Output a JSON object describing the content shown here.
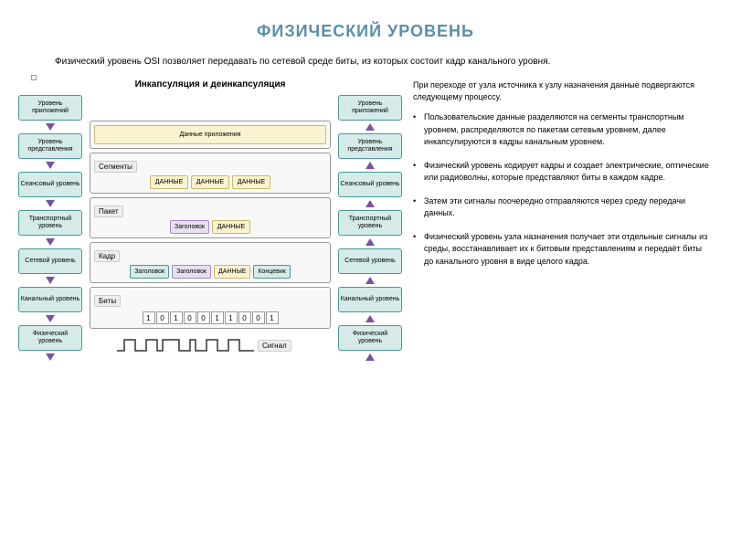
{
  "title": "ФИЗИЧЕСКИЙ УРОВЕНЬ",
  "title_color": "#5a8fa8",
  "intro": "Физический уровень OSI позволяет передавать по сетевой среде биты, из которых состоит кадр канального уровня.",
  "diagram": {
    "header": "Инкапсуляция и деинкапсуляция",
    "layers_left": [
      "Уровень приложений",
      "Уровень представления",
      "Сеансовый уровень",
      "Транспортный уровень",
      "Сетевой уровень",
      "Канальный уровень",
      "Физический уровень"
    ],
    "layers_right": [
      "Уровень приложений",
      "Уровень представления",
      "Сеансовый уровень",
      "Транспортный уровень",
      "Сетевой уровень",
      "Канальный уровень",
      "Физический уровень"
    ],
    "layer_bg": "#d4ebea",
    "layer_border": "#4a9896",
    "arrow_color": "#7b52a3",
    "app_data": {
      "label": "Данные приложения",
      "bg": "#faf3d0",
      "border": "#c9b96e"
    },
    "segments": {
      "label": "Сегменты",
      "blocks": [
        "ДАННЫЕ",
        "ДАННЫЕ",
        "ДАННЫЕ"
      ],
      "bg": "#faf3d0",
      "border": "#c9b96e"
    },
    "packet": {
      "label": "Пакет",
      "blocks": [
        {
          "t": "Заголовок",
          "bg": "#e8dff0",
          "border": "#a988c4"
        },
        {
          "t": "ДАННЫЕ",
          "bg": "#faf3d0",
          "border": "#c9b96e"
        }
      ]
    },
    "frame": {
      "label": "Кадр",
      "blocks": [
        {
          "t": "Заголовок",
          "bg": "#d4ebea",
          "border": "#4a9896"
        },
        {
          "t": "Заголовок",
          "bg": "#e8dff0",
          "border": "#a988c4"
        },
        {
          "t": "ДАННЫЕ",
          "bg": "#faf3d0",
          "border": "#c9b96e"
        },
        {
          "t": "Концевик",
          "bg": "#d4ebea",
          "border": "#4a9896"
        }
      ]
    },
    "bits": {
      "label": "Биты",
      "values": [
        "1",
        "0",
        "1",
        "0",
        "0",
        "1",
        "1",
        "0",
        "0",
        "1"
      ]
    },
    "signal_label": "Сигнал",
    "signal_wave": "╻┛┗┓┏┛┗┓┏┛┗┓┏┛┗┓┏╻"
  },
  "process": {
    "intro": "При переходе от узла источника к узлу назначения данные подвергаются следующему процессу.",
    "bullets": [
      "Пользовательские данные разделяются на сегменты транспортным уровнем, распределяются по пакетам сетевым уровнем, далее инкапсулируются в кадры канальным уровнем.",
      "Физический уровень кодирует кадры и создает электрические, оптические или радиоволны, которые представляют биты в каждом кадре.",
      "Затем эти сигналы поочередно отправляются через среду передачи данных.",
      "Физический уровень узла назначения получает эти отдельные сигналы из среды, восстанавливает их к битовым представлениям и передаёт биты до канального уровня в виде целого кадра."
    ]
  }
}
